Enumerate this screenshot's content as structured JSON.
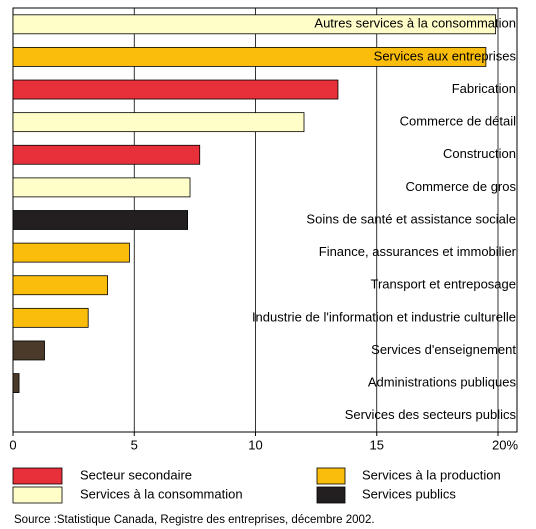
{
  "chart_data": {
    "type": "hbar",
    "categories": [
      "Autres services à la consommation",
      "Services aux entreprises",
      "Fabrication",
      "Commerce de détail",
      "Construction",
      "Commerce de gros",
      "Soins de santé et assistance sociale",
      "Finance, assurances et immobilier",
      "Transport et entreposage",
      "Industrie de l'information et industrie culturelle",
      "Services d'enseignement",
      "Administrations publiques",
      "Services des secteurs publics"
    ],
    "values": [
      19.9,
      19.5,
      13.4,
      12.0,
      7.7,
      7.3,
      7.2,
      4.8,
      3.9,
      3.1,
      1.3,
      0.25,
      0
    ],
    "colors": [
      "#fffdc8",
      "#fbbd0b",
      "#e8303a",
      "#fffdc8",
      "#e8303a",
      "#fffdc8",
      "#231f20",
      "#fbbd0b",
      "#fbbd0b",
      "#fbbd0b",
      "#4b3a2a",
      "#4b3a2a",
      "#4b3a2a"
    ],
    "xlim": [
      0,
      20
    ],
    "xticks": [
      0,
      5,
      10,
      15,
      {
        "value": 20,
        "label": "20%"
      }
    ],
    "grid": true,
    "legend": [
      {
        "label": "Secteur secondaire",
        "color": "#e8303a"
      },
      {
        "label": "Services à la production",
        "color": "#fbbd0b"
      },
      {
        "label": "Services à la consommation",
        "color": "#fffdc8"
      },
      {
        "label": "Services publics",
        "color": "#231f20"
      }
    ],
    "source": "Source :Statistique Canada, Registre des entreprises, décembre 2002."
  }
}
